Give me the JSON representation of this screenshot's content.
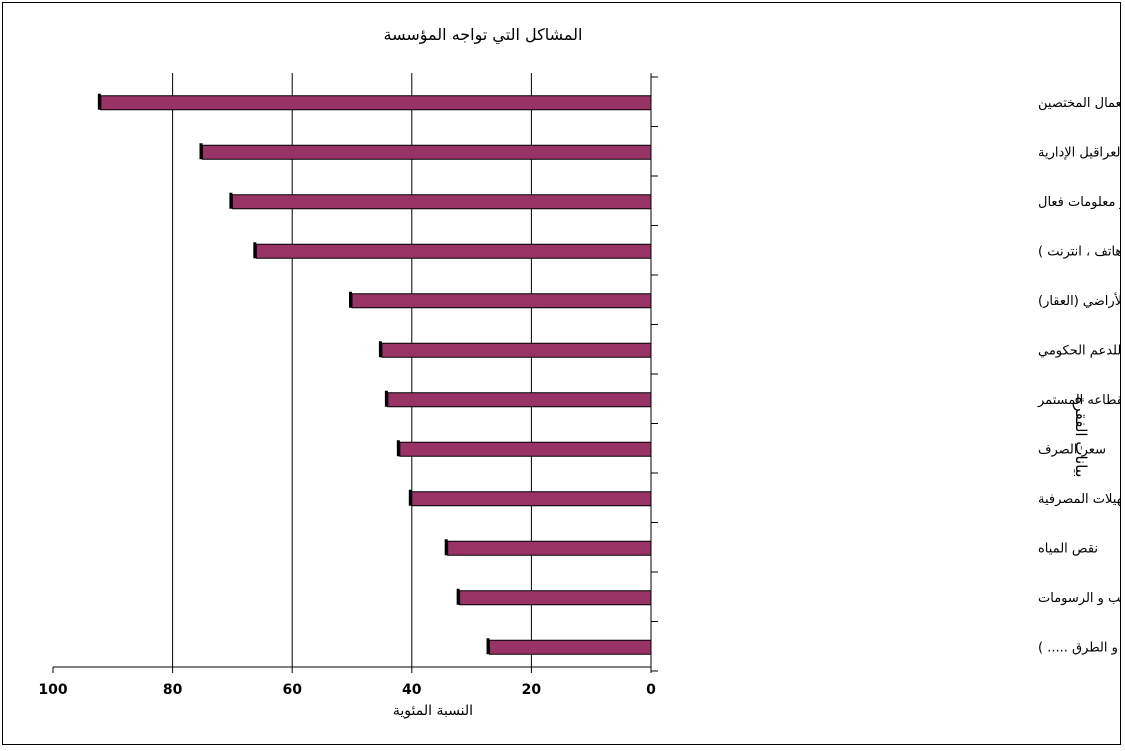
{
  "chart_data": {
    "type": "bar",
    "orientation": "horizontal",
    "title": "المشاكل التي تواجه المؤسسة",
    "xlabel": "النسبة المئوية",
    "ylabel": "بيانات الفقرة",
    "xlim": [
      0,
      100
    ],
    "x_reversed": true,
    "xticks": [
      "100",
      "80",
      "60",
      "40",
      "20",
      "0"
    ],
    "grid": "vertical",
    "bar_color": "#993366",
    "categories": [
      "نقص العمال المختصين",
      "العراقيل الإدارية",
      "غياب جهاز معلومات فعال",
      "تعطل المستمر لوسائل الاتصال (هاتف ، انترنت )",
      "صعوبة الحصول على الأراضي (العقار)",
      "نقص للدعم الحكومي",
      "ضعف التيار الكهربائي و انقطاعه المستمر",
      "سعر الصرف",
      "غياب التسهيلات المصرفية",
      "نقص المياه",
      "كثرة الضرائب و الرسومات",
      "ضعف البنية التحتية ( مواصلات و الطرق ..... )"
    ],
    "values": [
      92,
      75,
      70,
      66,
      50,
      45,
      44,
      42,
      40,
      34,
      32,
      27
    ]
  }
}
